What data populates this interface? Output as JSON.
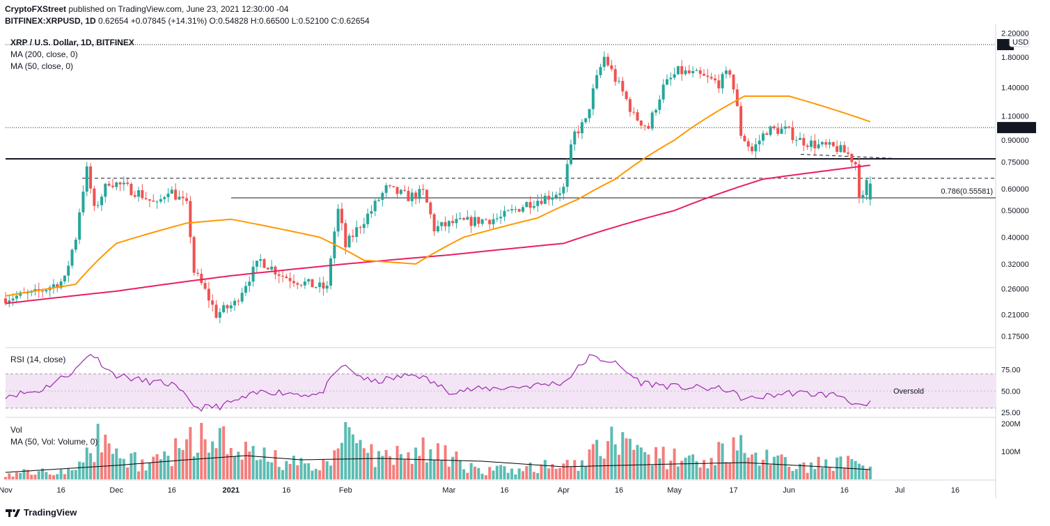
{
  "header": {
    "author": "CryptoFXStreet",
    "published_text": "published on TradingView.com, June 23, 2021 12:30:00 -04",
    "symbol": "BITFINEX:XRPUSD, 1D",
    "price": "0.62654",
    "change": "+0.07845 (+14.31%)",
    "ohlc_text": "O:0.54828  H:0.66500  L:0.52100  C:0.62654"
  },
  "legend": {
    "title": "XRP / U.S. Dollar, 1D, BITFINEX",
    "ma200": "MA (200, close, 0)",
    "ma50": "MA (50, close, 0)",
    "rsi": "RSI (14, close)",
    "vol": "Vol",
    "vol_ma": "MA (50, Vol: Volume, 0)"
  },
  "footer": {
    "brand": "TradingView"
  },
  "colors": {
    "up": "#26a69a",
    "down": "#ef5350",
    "ma50": "#ff9800",
    "ma200": "#e91e63",
    "rsi": "#9c27b0",
    "rsi_band": "#f3e5f5",
    "vol_ma": "#000000"
  },
  "chart_data": [
    {
      "type": "candlestick",
      "title": "XRP / U.S. Dollar, 1D, BITFINEX",
      "yscale": "log",
      "ylim": [
        0.16,
        2.3
      ],
      "yticks": [
        "2.20000",
        "1.80000",
        "1.40000",
        "1.10000",
        "0.90000",
        "0.75000",
        "0.60000",
        "0.50000",
        "0.40000",
        "0.32000",
        "0.26000",
        "0.21000",
        "0.17500"
      ],
      "y_unit_label": "USD",
      "x_tick_labels": [
        "Nov",
        "16",
        "Dec",
        "16",
        "2021",
        "16",
        "Feb",
        "Mar",
        "16",
        "Apr",
        "16",
        "May",
        "17",
        "Jun",
        "16",
        "Jul",
        "16"
      ],
      "x_range_dates": [
        "2020-11-01",
        "2021-07-26"
      ],
      "price_marker": "2.00",
      "level_marker": "1.00000",
      "fib_label": "0.786(0.55581)",
      "horizontal_levels": [
        {
          "name": "resistance",
          "value": 0.77,
          "style": "solid-bold"
        },
        {
          "name": "dashed-resistance",
          "value": 0.655,
          "style": "dashed"
        },
        {
          "name": "fib-0.786",
          "value": 0.556,
          "style": "solid"
        },
        {
          "name": "top-dotted",
          "value": 2.0,
          "style": "dotted"
        },
        {
          "name": "one-dollar",
          "value": 1.0,
          "style": "dotted"
        }
      ],
      "price_anchors": [
        [
          "2020-11-01",
          0.24
        ],
        [
          "2020-11-10",
          0.25
        ],
        [
          "2020-11-18",
          0.28
        ],
        [
          "2020-11-21",
          0.4
        ],
        [
          "2020-11-24",
          0.7
        ],
        [
          "2020-11-26",
          0.5
        ],
        [
          "2020-11-30",
          0.64
        ],
        [
          "2020-12-08",
          0.58
        ],
        [
          "2020-12-13",
          0.52
        ],
        [
          "2020-12-16",
          0.6
        ],
        [
          "2020-12-21",
          0.52
        ],
        [
          "2020-12-23",
          0.3
        ],
        [
          "2020-12-29",
          0.21
        ],
        [
          "2021-01-03",
          0.23
        ],
        [
          "2021-01-10",
          0.33
        ],
        [
          "2021-01-16",
          0.29
        ],
        [
          "2021-01-23",
          0.27
        ],
        [
          "2021-01-28",
          0.26
        ],
        [
          "2021-01-31",
          0.5
        ],
        [
          "2021-02-02",
          0.37
        ],
        [
          "2021-02-09",
          0.5
        ],
        [
          "2021-02-13",
          0.6
        ],
        [
          "2021-02-19",
          0.56
        ],
        [
          "2021-02-23",
          0.58
        ],
        [
          "2021-02-26",
          0.43
        ],
        [
          "2021-03-03",
          0.45
        ],
        [
          "2021-03-10",
          0.46
        ],
        [
          "2021-03-16",
          0.47
        ],
        [
          "2021-03-23",
          0.53
        ],
        [
          "2021-03-30",
          0.57
        ],
        [
          "2021-04-02",
          0.6
        ],
        [
          "2021-04-05",
          0.95
        ],
        [
          "2021-04-08",
          1.05
        ],
        [
          "2021-04-13",
          1.8
        ],
        [
          "2021-04-16",
          1.5
        ],
        [
          "2021-04-21",
          1.1
        ],
        [
          "2021-04-25",
          1.0
        ],
        [
          "2021-04-29",
          1.4
        ],
        [
          "2021-05-03",
          1.6
        ],
        [
          "2021-05-08",
          1.55
        ],
        [
          "2021-05-14",
          1.45
        ],
        [
          "2021-05-17",
          1.6
        ],
        [
          "2021-05-20",
          0.95
        ],
        [
          "2021-05-23",
          0.82
        ],
        [
          "2021-05-27",
          0.98
        ],
        [
          "2021-06-01",
          0.98
        ],
        [
          "2021-06-05",
          0.9
        ],
        [
          "2021-06-10",
          0.86
        ],
        [
          "2021-06-15",
          0.84
        ],
        [
          "2021-06-18",
          0.8
        ],
        [
          "2021-06-20",
          0.74
        ],
        [
          "2021-06-21",
          0.58
        ],
        [
          "2021-06-22",
          0.55
        ],
        [
          "2021-06-23",
          0.62654
        ]
      ],
      "ma50_anchors": [
        [
          "2020-11-01",
          0.245
        ],
        [
          "2020-11-20",
          0.27
        ],
        [
          "2020-12-01",
          0.38
        ],
        [
          "2020-12-20",
          0.45
        ],
        [
          "2021-01-01",
          0.465
        ],
        [
          "2021-01-25",
          0.4
        ],
        [
          "2021-02-06",
          0.33
        ],
        [
          "2021-02-20",
          0.32
        ],
        [
          "2021-03-05",
          0.4
        ],
        [
          "2021-03-25",
          0.47
        ],
        [
          "2021-04-05",
          0.55
        ],
        [
          "2021-04-15",
          0.65
        ],
        [
          "2021-05-01",
          0.9
        ],
        [
          "2021-05-20",
          1.3
        ],
        [
          "2021-06-01",
          1.3
        ],
        [
          "2021-06-23",
          1.05
        ]
      ],
      "ma200_anchors": [
        [
          "2020-11-01",
          0.23
        ],
        [
          "2020-12-01",
          0.255
        ],
        [
          "2021-01-01",
          0.29
        ],
        [
          "2021-02-01",
          0.32
        ],
        [
          "2021-03-01",
          0.345
        ],
        [
          "2021-04-01",
          0.38
        ],
        [
          "2021-05-01",
          0.5
        ],
        [
          "2021-05-25",
          0.65
        ],
        [
          "2021-06-23",
          0.73
        ]
      ],
      "last_candle": {
        "open": 0.54828,
        "high": 0.665,
        "low": 0.521,
        "close": 0.62654
      }
    },
    {
      "type": "line",
      "title": "RSI (14, close)",
      "ylim": [
        20,
        100
      ],
      "yticks": [
        "75.00",
        "50.00",
        "25.00"
      ],
      "band": [
        30,
        70
      ],
      "annotation": "Oversold",
      "anchors": [
        [
          "2020-11-01",
          45
        ],
        [
          "2020-11-10",
          50
        ],
        [
          "2020-11-20",
          75
        ],
        [
          "2020-11-24",
          95
        ],
        [
          "2020-11-30",
          70
        ],
        [
          "2020-12-08",
          62
        ],
        [
          "2020-12-16",
          58
        ],
        [
          "2020-12-23",
          30
        ],
        [
          "2020-12-29",
          32
        ],
        [
          "2021-01-10",
          50
        ],
        [
          "2021-01-25",
          45
        ],
        [
          "2021-01-31",
          80
        ],
        [
          "2021-02-08",
          60
        ],
        [
          "2021-02-20",
          70
        ],
        [
          "2021-03-01",
          50
        ],
        [
          "2021-03-20",
          55
        ],
        [
          "2021-04-01",
          60
        ],
        [
          "2021-04-08",
          90
        ],
        [
          "2021-04-14",
          85
        ],
        [
          "2021-04-22",
          60
        ],
        [
          "2021-05-01",
          55
        ],
        [
          "2021-05-15",
          52
        ],
        [
          "2021-05-20",
          40
        ],
        [
          "2021-06-01",
          48
        ],
        [
          "2021-06-15",
          45
        ],
        [
          "2021-06-21",
          30
        ],
        [
          "2021-06-23",
          35
        ]
      ]
    },
    {
      "type": "bar",
      "title": "Vol",
      "ylim": [
        0,
        220
      ],
      "yticks": [
        "200M",
        "100M"
      ],
      "unit": "M",
      "ma_anchors": [
        [
          "2020-11-01",
          25
        ],
        [
          "2020-12-01",
          50
        ],
        [
          "2020-12-20",
          70
        ],
        [
          "2021-01-05",
          85
        ],
        [
          "2021-01-20",
          70
        ],
        [
          "2021-02-10",
          75
        ],
        [
          "2021-03-10",
          65
        ],
        [
          "2021-04-01",
          45
        ],
        [
          "2021-05-01",
          55
        ],
        [
          "2021-05-20",
          60
        ],
        [
          "2021-06-10",
          45
        ],
        [
          "2021-06-23",
          35
        ]
      ],
      "level_anchors": [
        [
          "2020-11-01",
          20
        ],
        [
          "2020-11-20",
          40
        ],
        [
          "2020-11-25",
          140
        ],
        [
          "2020-12-10",
          50
        ],
        [
          "2020-12-23",
          170
        ],
        [
          "2021-01-05",
          90
        ],
        [
          "2021-01-25",
          40
        ],
        [
          "2021-01-31",
          150
        ],
        [
          "2021-02-10",
          70
        ],
        [
          "2021-02-22",
          130
        ],
        [
          "2021-03-10",
          30
        ],
        [
          "2021-04-05",
          60
        ],
        [
          "2021-04-13",
          140
        ],
        [
          "2021-04-25",
          80
        ],
        [
          "2021-05-20",
          110
        ],
        [
          "2021-06-01",
          50
        ],
        [
          "2021-06-21",
          60
        ],
        [
          "2021-06-23",
          35
        ]
      ]
    }
  ]
}
